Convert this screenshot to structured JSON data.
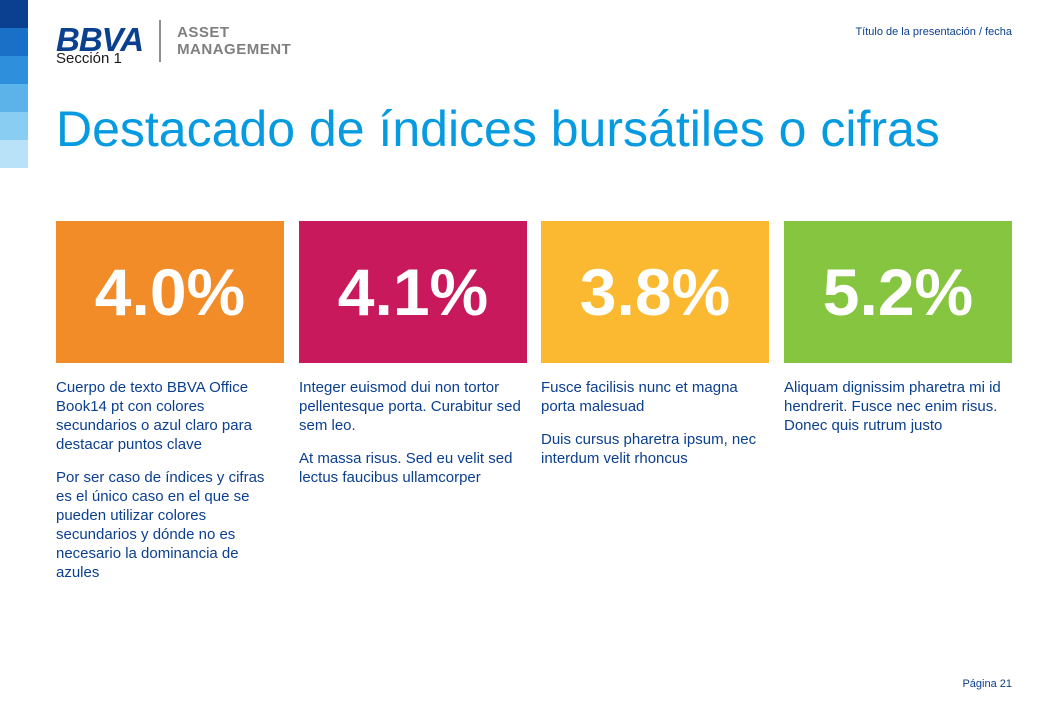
{
  "header": {
    "logo_word": "BBVA",
    "logo_sub_line1": "ASSET",
    "logo_sub_line2": "MANAGEMENT",
    "presentation_info": "Título de la presentación / fecha"
  },
  "section_label": "Sección 1",
  "title": "Destacado de índices bursátiles o cifras",
  "edge_strip_colors": [
    "#0b3f8f",
    "#1a6fc6",
    "#2e8fdc",
    "#5bb3ea",
    "#8acdf2",
    "#b9e2f8"
  ],
  "tiles": [
    {
      "value": "4.0%",
      "color": "#f28c28",
      "paragraphs": [
        "Cuerpo de texto  BBVA Office Book14 pt con colores secundarios o azul claro para destacar puntos clave",
        "Por ser caso de índices y cifras es el único caso en el que se pueden utilizar colores secundarios y dónde no es necesario la dominancia de azules"
      ]
    },
    {
      "value": "4.1%",
      "color": "#c8195c",
      "paragraphs": [
        "Integer euismod dui non tortor pellentesque porta. Curabitur sed sem leo.",
        "At massa risus. Sed eu velit sed lectus faucibus ullamcorper"
      ]
    },
    {
      "value": "3.8%",
      "color": "#fbb932",
      "paragraphs": [
        "Fusce facilisis nunc et magna porta malesuad",
        "Duis cursus pharetra ipsum, nec interdum velit rhoncus"
      ]
    },
    {
      "value": "5.2%",
      "color": "#86c540",
      "paragraphs": [
        "Aliquam dignissim pharetra mi id hendrerit. Fusce nec enim risus. Donec quis rutrum justo"
      ]
    }
  ],
  "footer": {
    "page_label": "Página 21"
  }
}
